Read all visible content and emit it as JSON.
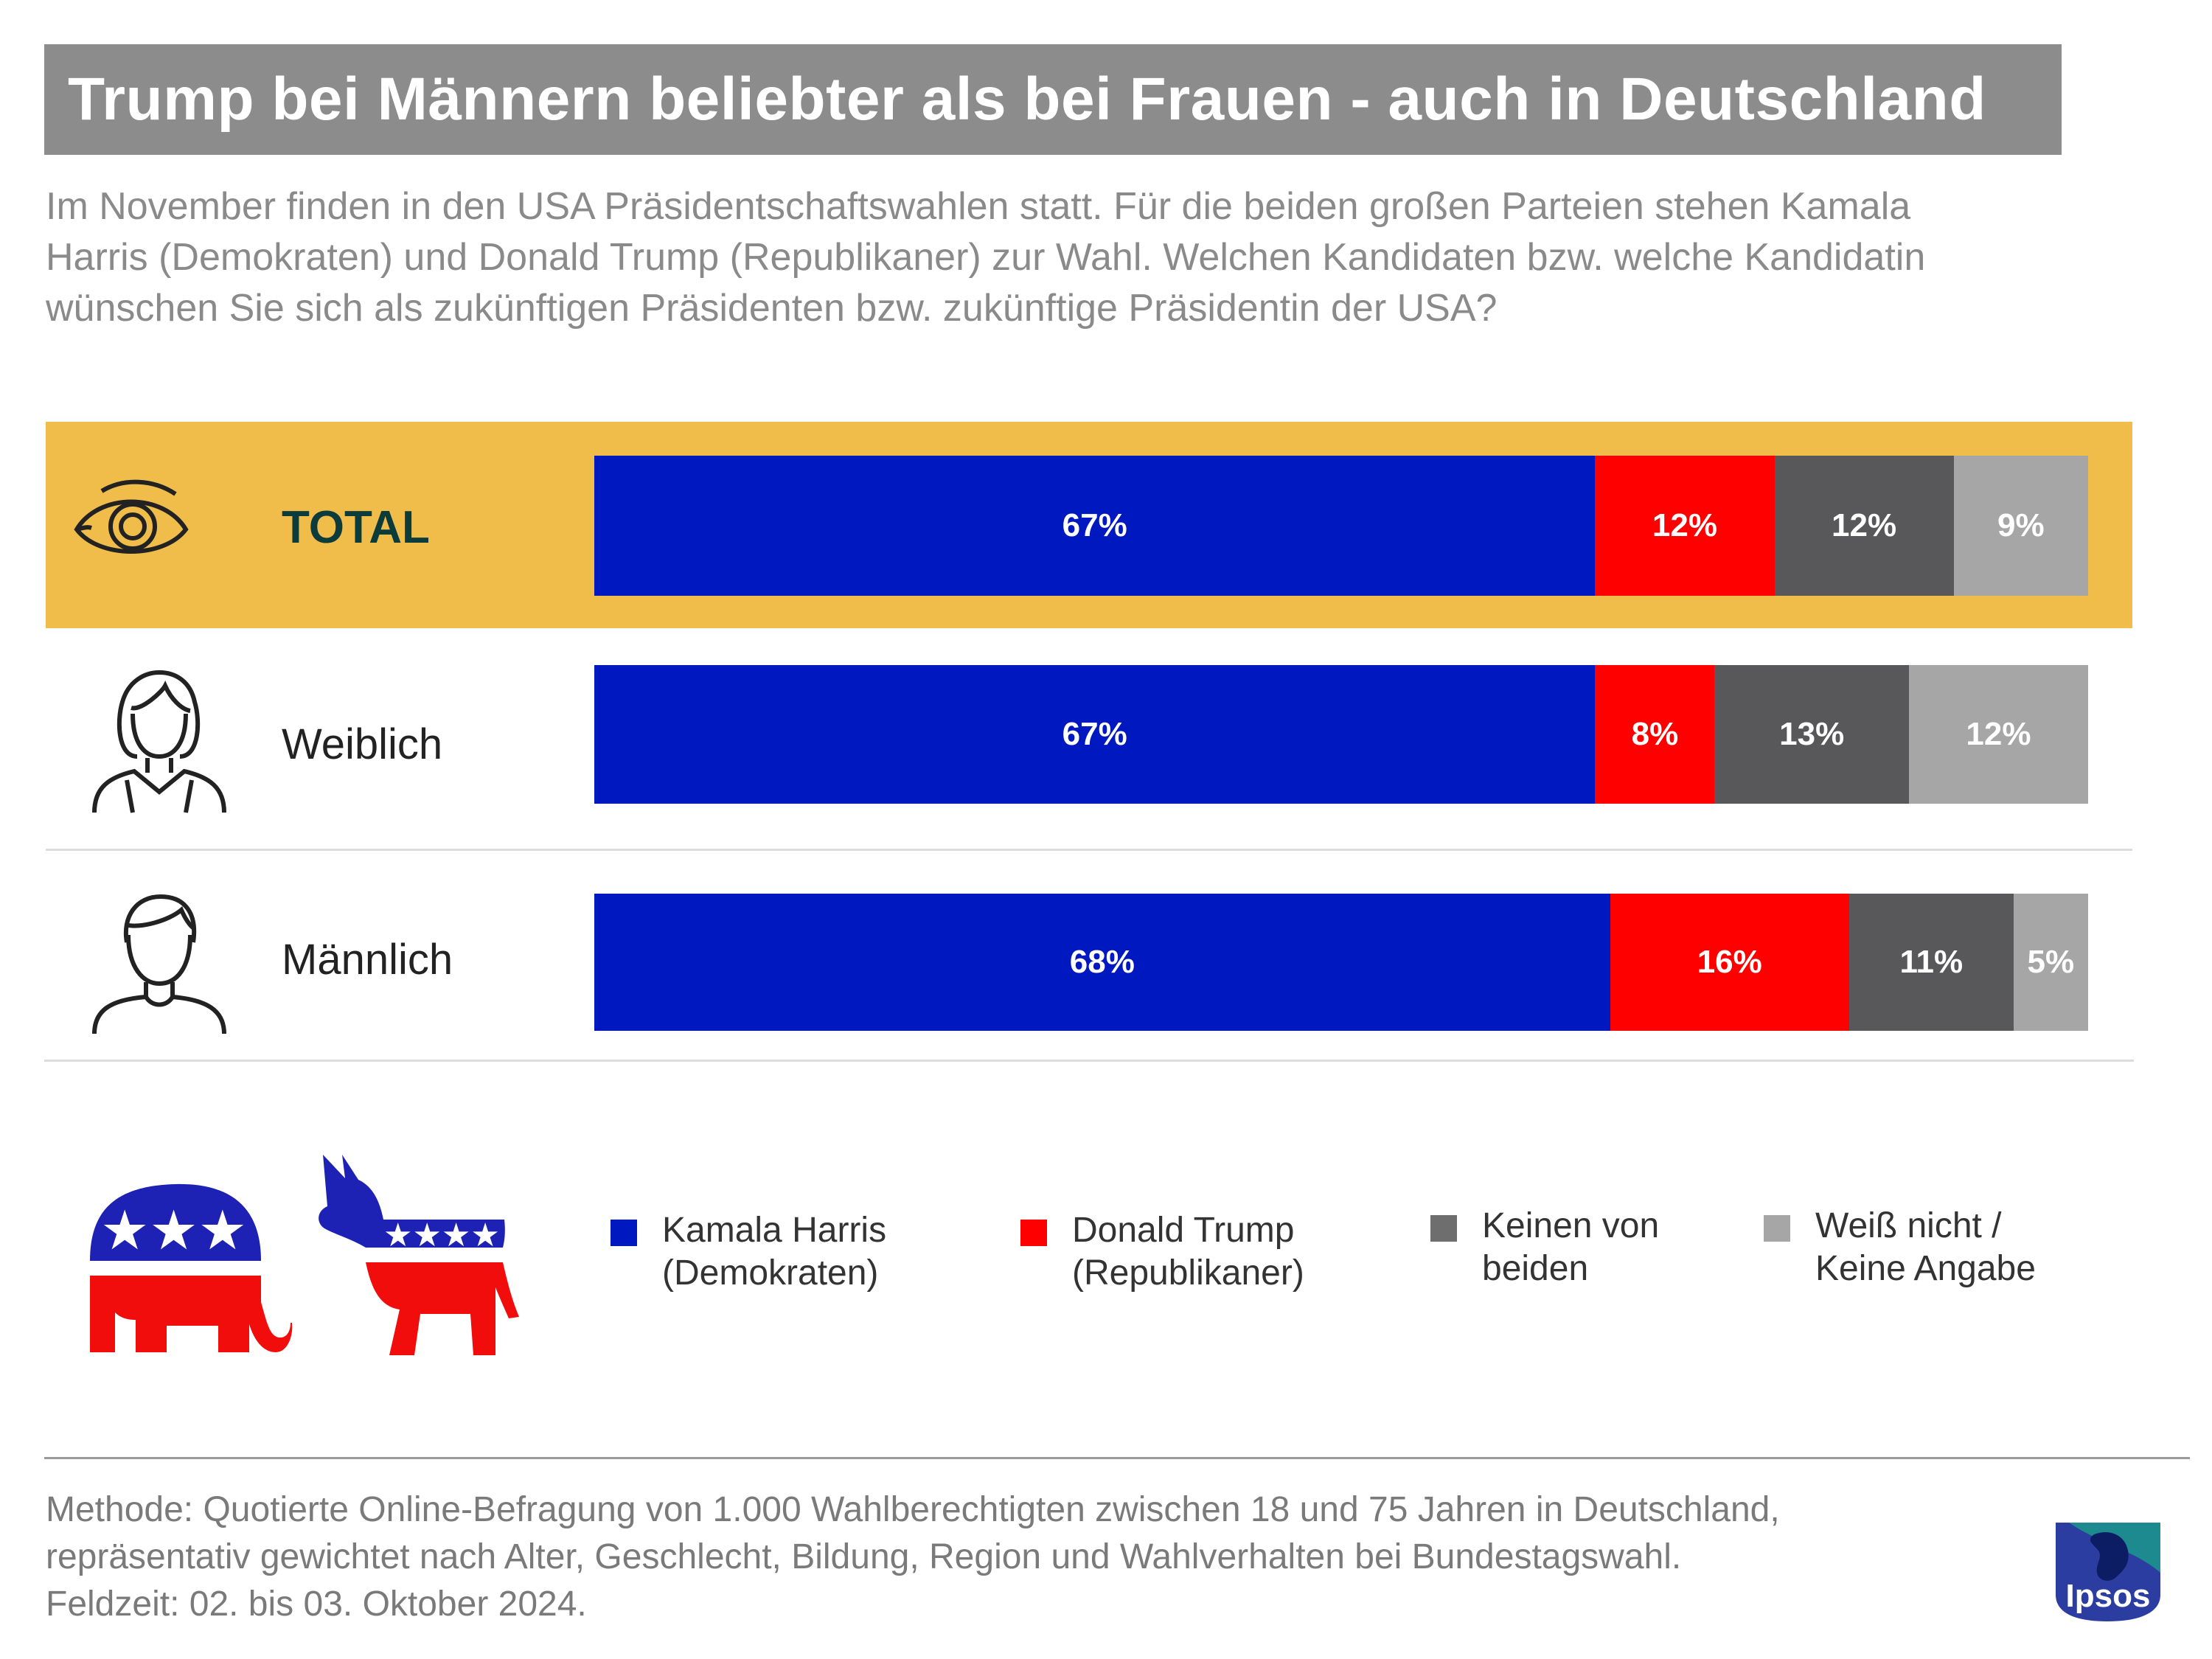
{
  "title": "Trump bei Männern beliebter als bei Frauen - auch in Deutschland",
  "subtitle": [
    "Im November finden in den USA Präsidentschaftswahlen statt. Für die beiden großen Parteien stehen Kamala",
    "Harris (Demokraten) und Donald Trump (Republikaner) zur Wahl. Welchen Kandidaten bzw. welche Kandidatin",
    "wünschen Sie sich als zukünftigen Präsidenten bzw. zukünftige Präsidentin der USA?"
  ],
  "colors": {
    "harris": "#0018c0",
    "trump": "#ff0000",
    "keinen": "#58585a",
    "weiss_nicht": "#a6a6a6",
    "highlight": "#f0bd4b",
    "title_bg": "#8c8c8c"
  },
  "icons": {
    "total": "eye-icon",
    "weiblich": "woman-icon",
    "maennlich": "man-icon",
    "republican": "elephant-icon",
    "democrat": "donkey-icon"
  },
  "chart_data": {
    "type": "bar",
    "orientation": "horizontal",
    "stacked": true,
    "categories": [
      "TOTAL",
      "Weiblich",
      "Männlich"
    ],
    "series": [
      {
        "name": "Kamala Harris (Demokraten)",
        "values": [
          67,
          67,
          68
        ],
        "labels": [
          "67%",
          "67%",
          "68%"
        ]
      },
      {
        "name": "Donald Trump (Republikaner)",
        "values": [
          12,
          8,
          16
        ],
        "labels": [
          "12%",
          "8%",
          "16%"
        ]
      },
      {
        "name": "Keinen von beiden",
        "values": [
          12,
          13,
          11
        ],
        "labels": [
          "12%",
          "13%",
          "11%"
        ]
      },
      {
        "name": "Weiß nicht / Keine Angabe",
        "values": [
          9,
          12,
          5
        ],
        "labels": [
          "9%",
          "12%",
          "5%"
        ]
      }
    ],
    "unit": "%",
    "legend_position": "bottom"
  },
  "legend": [
    {
      "lines": [
        "Kamala Harris",
        "(Demokraten)"
      ]
    },
    {
      "lines": [
        "Donald Trump",
        "(Republikaner)"
      ]
    },
    {
      "lines": [
        "Keinen von",
        "beiden"
      ]
    },
    {
      "lines": [
        "Weiß nicht /",
        "Keine Angabe"
      ]
    }
  ],
  "method": [
    "Methode: Quotierte Online-Befragung von 1.000 Wahlberechtigten zwischen 18 und 75 Jahren in Deutschland,",
    "repräsentativ gewichtet nach Alter, Geschlecht, Bildung, Region und Wahlverhalten bei Bundestagswahl.",
    "Feldzeit: 02. bis 03. Oktober 2024."
  ],
  "logo_text": "Ipsos"
}
